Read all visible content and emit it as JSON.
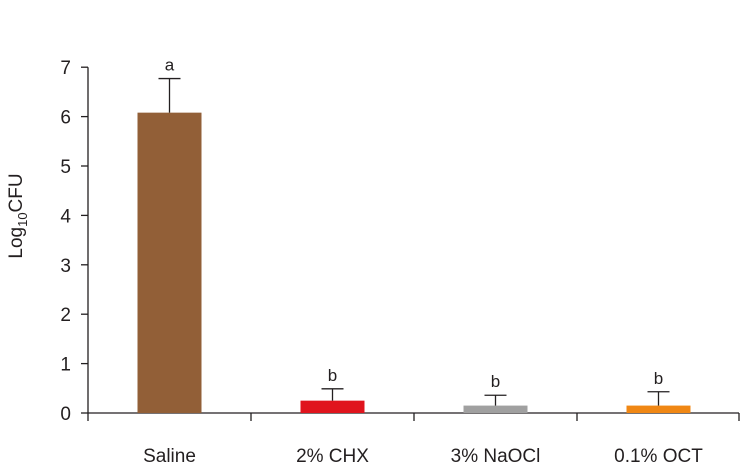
{
  "chart_data": {
    "type": "bar",
    "title": "",
    "xlabel": "",
    "ylabel": {
      "base": "Log",
      "subscript": "10",
      "suffix": "CFU"
    },
    "ylim": [
      0,
      7
    ],
    "yticks": [
      "0",
      "1",
      "2",
      "3",
      "4",
      "5",
      "6",
      "7"
    ],
    "categories": [
      "Saline",
      "2% CHX",
      "3% NaOCl",
      "0.1% OCT"
    ],
    "values": [
      6.08,
      0.25,
      0.15,
      0.15
    ],
    "errors": [
      0.69,
      0.24,
      0.21,
      0.28
    ],
    "significance": [
      "a",
      "b",
      "b",
      "b"
    ],
    "colors": [
      "#925f37",
      "#e0141d",
      "#a0a0a0",
      "#f08714"
    ],
    "grid": false,
    "legend": "none"
  }
}
